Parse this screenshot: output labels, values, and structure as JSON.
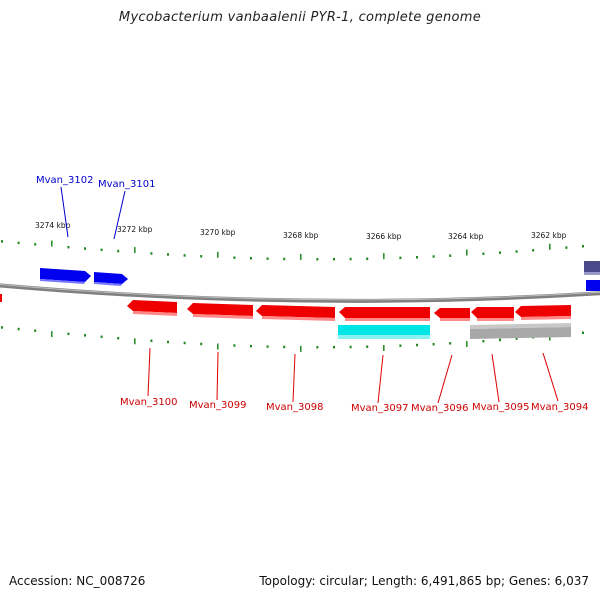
{
  "title": "Mycobacterium vanbaalenii PYR-1, complete genome",
  "footer": {
    "accession": "Accession: NC_008726",
    "summary": "Topology: circular; Length: 6,491,865 bp; Genes: 6,037"
  },
  "colors": {
    "forward_gene": "#0000ee",
    "reverse_gene": "#ee0000",
    "feature_cyan": "#00e5e5",
    "feature_gray": "#a8a8a8",
    "backbone": "#808080",
    "tick": "#228822",
    "edge_gene": "#4a4a8a"
  },
  "scale_labels": [
    "3274 kbp",
    "3272 kbp",
    "3270 kbp",
    "3268 kbp",
    "3266 kbp",
    "3264 kbp",
    "3262 kbp"
  ],
  "forward_labels": [
    "Mvan_3102",
    "Mvan_3101"
  ],
  "reverse_labels": [
    "Mvan_3100",
    "Mvan_3099",
    "Mvan_3098",
    "Mvan_3097",
    "Mvan_3096",
    "Mvan_3095",
    "Mvan_3094"
  ]
}
